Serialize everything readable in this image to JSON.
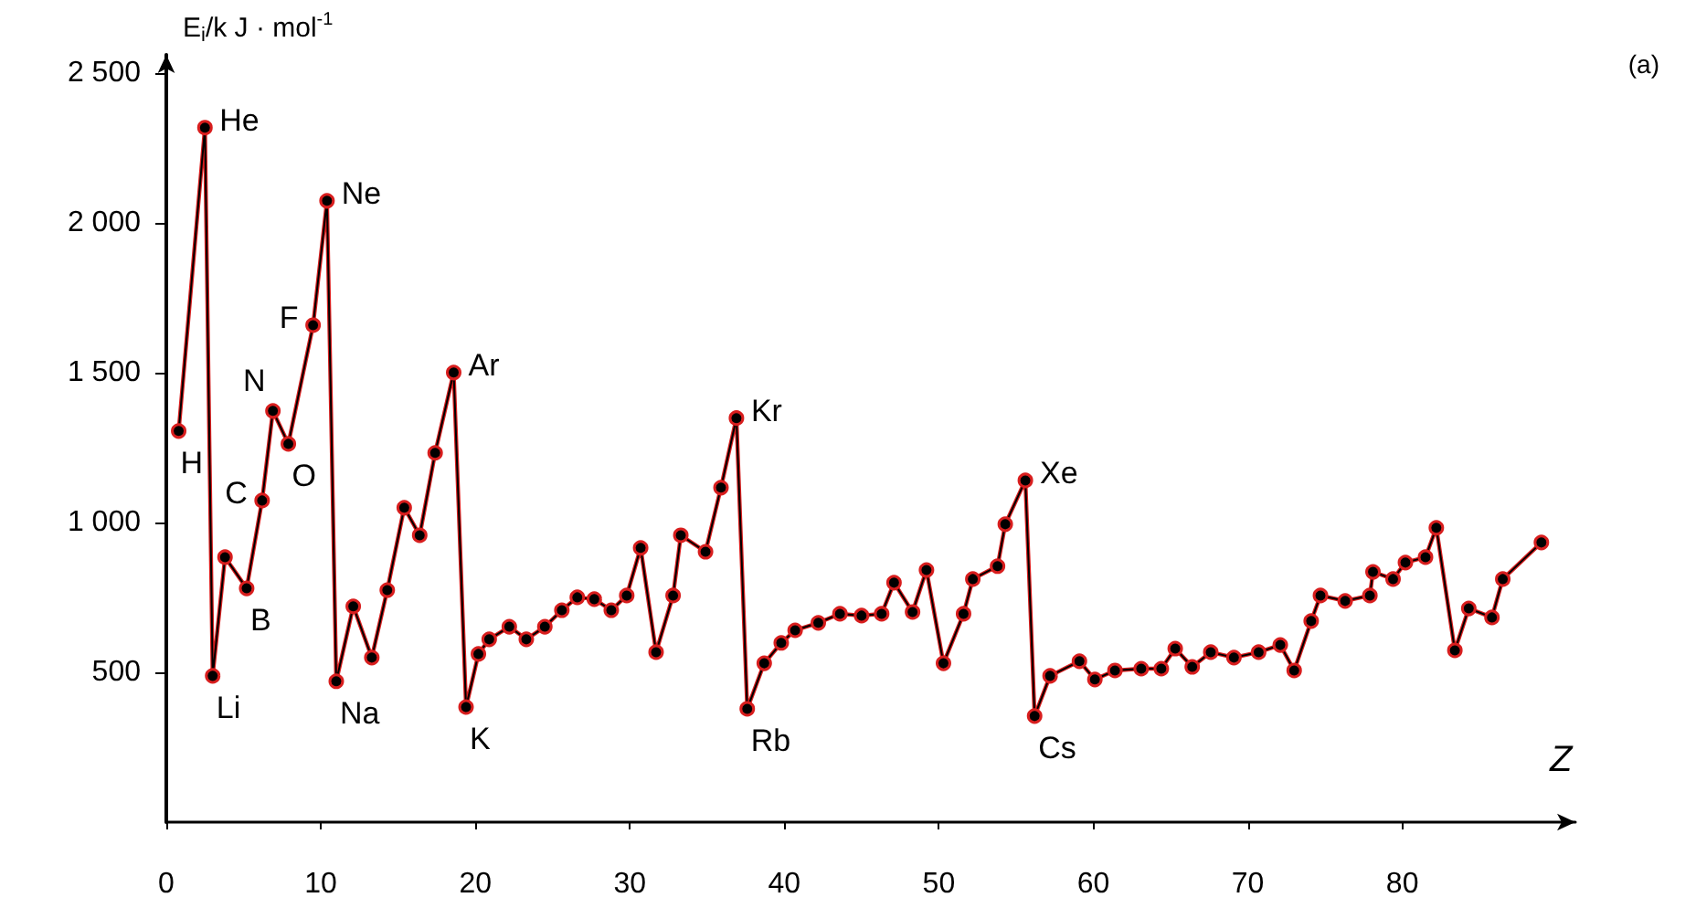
{
  "chart_data": {
    "type": "line",
    "ylabel": "E$_{i}$/k J · mol$^{-1}$",
    "xlabel": "Z",
    "x": [
      0.8,
      2.5,
      3.0,
      3.8,
      5.2,
      6.2,
      6.9,
      7.9,
      9.5,
      10.4,
      11.0,
      12.1,
      13.3,
      14.3,
      15.4,
      16.4,
      17.4,
      18.6,
      19.4,
      20.2,
      20.9,
      22.2,
      23.3,
      24.5,
      25.6,
      26.6,
      27.7,
      28.8,
      29.8,
      30.7,
      31.7,
      32.8,
      33.3,
      34.9,
      35.9,
      36.9,
      37.6,
      38.7,
      39.8,
      40.7,
      42.2,
      43.6,
      45.0,
      46.3,
      47.1,
      48.3,
      49.2,
      50.3,
      51.6,
      52.2,
      53.8,
      54.3,
      55.6,
      56.2,
      57.2,
      59.1,
      60.1,
      61.4,
      63.1,
      64.4,
      65.3,
      66.4,
      67.6,
      69.1,
      70.7,
      72.1,
      73.0,
      74.1,
      74.7,
      76.3,
      77.9,
      78.1,
      79.4,
      80.2,
      81.5,
      82.2,
      83.4,
      84.3,
      85.8,
      86.5,
      89.0
    ],
    "series": [
      {
        "color": "#d81e1e",
        "values": [
          1305,
          2317,
          488,
          884,
          780,
          1073,
          1372,
          1262,
          1658,
          2073,
          470,
          720,
          549,
          774,
          1049,
          957,
          1232,
          1500,
          384,
          561,
          610,
          652,
          610,
          652,
          707,
          750,
          744,
          707,
          756,
          915,
          567,
          756,
          957,
          902,
          1116,
          1348,
          378,
          530,
          598,
          640,
          665,
          695,
          689,
          695,
          799,
          701,
          841,
          530,
          695,
          811,
          854,
          994,
          1140,
          354,
          488,
          537,
          476,
          506,
          512,
          512,
          579,
          518,
          567,
          549,
          567,
          591,
          506,
          671,
          756,
          738,
          756,
          835,
          811,
          866,
          884,
          982,
          573,
          713,
          683,
          811,
          933
        ]
      }
    ],
    "xlim": [
      0,
      91.2
    ],
    "ylim": [
      0,
      2560
    ],
    "xticks": [
      {
        "value": 0,
        "label": "0"
      },
      10,
      20,
      30,
      40,
      50,
      60,
      70,
      80
    ],
    "yticks": [
      500,
      {
        "value": 1000,
        "label": "1 000"
      },
      {
        "value": 1500,
        "label": "1 500"
      },
      {
        "value": 2000,
        "label": "2 000"
      },
      {
        "value": 2500,
        "label": "2 500"
      }
    ],
    "marker": "circle",
    "grid": false,
    "annotations": [
      "(a)",
      {
        "text": "H",
        "x": 0.8,
        "y": 1305
      },
      {
        "text": "He",
        "x": 2.5,
        "y": 2317
      },
      {
        "text": "Li",
        "x": 3.0,
        "y": 488
      },
      {
        "text": "B",
        "x": 5.2,
        "y": 780
      },
      {
        "text": "C",
        "x": 6.2,
        "y": 1073
      },
      {
        "text": "N",
        "x": 6.9,
        "y": 1372
      },
      {
        "text": "O",
        "x": 7.9,
        "y": 1262
      },
      {
        "text": "F",
        "x": 9.5,
        "y": 1658
      },
      {
        "text": "Ne",
        "x": 10.4,
        "y": 2073
      },
      {
        "text": "Na",
        "x": 11.0,
        "y": 470
      },
      {
        "text": "Ar",
        "x": 18.6,
        "y": 1500
      },
      {
        "text": "K",
        "x": 19.4,
        "y": 384
      },
      {
        "text": "Kr",
        "x": 36.9,
        "y": 1348
      },
      {
        "text": "Rb",
        "x": 37.6,
        "y": 378
      },
      {
        "text": "Xe",
        "x": 55.6,
        "y": 1140
      },
      {
        "text": "Cs",
        "x": 56.2,
        "y": 354
      }
    ]
  }
}
